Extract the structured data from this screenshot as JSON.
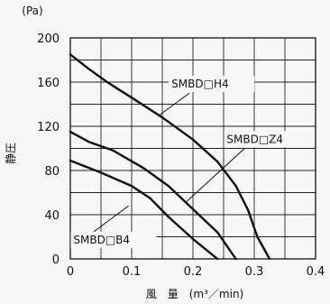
{
  "chart_data": {
    "type": "line",
    "y_unit": "(Pa)",
    "ylabel": "静圧",
    "xlabel": "風　量　(m³／min)",
    "xlim": [
      0,
      0.4
    ],
    "ylim": [
      0,
      200
    ],
    "x_ticks": [
      "0",
      "0.1",
      "0.2",
      "0.3",
      "0.4"
    ],
    "y_ticks": [
      "0",
      "40",
      "80",
      "120",
      "160",
      "200"
    ],
    "grid": true,
    "series": [
      {
        "name": "SMBD□H4",
        "points": [
          [
            0,
            185
          ],
          [
            0.03,
            172
          ],
          [
            0.06,
            160
          ],
          [
            0.1,
            146
          ],
          [
            0.15,
            128
          ],
          [
            0.2,
            108
          ],
          [
            0.24,
            88
          ],
          [
            0.27,
            66
          ],
          [
            0.29,
            44
          ],
          [
            0.305,
            20
          ],
          [
            0.325,
            0
          ]
        ]
      },
      {
        "name": "SMBD□Z4",
        "points": [
          [
            0,
            115
          ],
          [
            0.03,
            106
          ],
          [
            0.07,
            98
          ],
          [
            0.12,
            82
          ],
          [
            0.16,
            66
          ],
          [
            0.2,
            45
          ],
          [
            0.24,
            24
          ],
          [
            0.27,
            0
          ]
        ]
      },
      {
        "name": "SMBD□B4",
        "points": [
          [
            0,
            89
          ],
          [
            0.05,
            78
          ],
          [
            0.1,
            66
          ],
          [
            0.13,
            55
          ],
          [
            0.16,
            38
          ],
          [
            0.2,
            18
          ],
          [
            0.24,
            0
          ]
        ]
      }
    ]
  }
}
